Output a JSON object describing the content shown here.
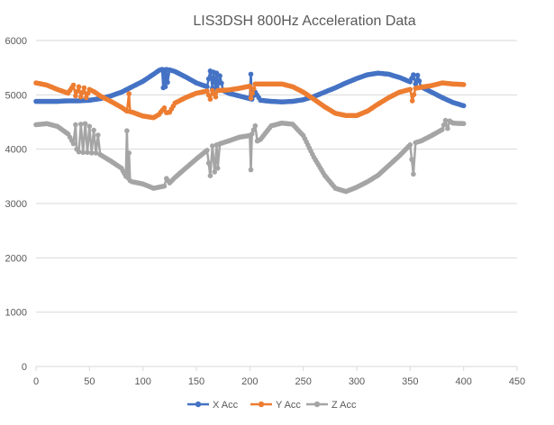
{
  "chart_data": {
    "type": "line",
    "title": "LIS3DSH 800Hz Acceleration Data",
    "xlabel": "",
    "ylabel": "",
    "xlim": [
      0,
      450
    ],
    "ylim": [
      0,
      6000
    ],
    "x_ticks": [
      0,
      50,
      100,
      150,
      200,
      250,
      300,
      350,
      400,
      450
    ],
    "y_ticks": [
      0,
      1000,
      2000,
      3000,
      4000,
      5000,
      6000
    ],
    "x_tick_labels": [
      "0",
      "50",
      "100",
      "150",
      "200",
      "250",
      "300",
      "350",
      "400",
      "450"
    ],
    "y_tick_labels": [
      "0",
      "1000",
      "2000",
      "3000",
      "4000",
      "5000",
      "6000"
    ],
    "grid": "horizontal",
    "legend_position": "bottom",
    "series": [
      {
        "name": "X Acc",
        "color": "#4472C4",
        "points": [
          [
            0,
            4880
          ],
          [
            10,
            4880
          ],
          [
            20,
            4880
          ],
          [
            30,
            4890
          ],
          [
            40,
            4890
          ],
          [
            50,
            4900
          ],
          [
            60,
            4930
          ],
          [
            70,
            4980
          ],
          [
            80,
            5050
          ],
          [
            90,
            5150
          ],
          [
            100,
            5250
          ],
          [
            110,
            5380
          ],
          [
            115,
            5450
          ],
          [
            118,
            5470
          ],
          [
            119,
            5130
          ],
          [
            120,
            5460
          ],
          [
            121,
            5150
          ],
          [
            122,
            5470
          ],
          [
            123,
            5230
          ],
          [
            125,
            5460
          ],
          [
            130,
            5430
          ],
          [
            140,
            5330
          ],
          [
            150,
            5220
          ],
          [
            160,
            5150
          ],
          [
            163,
            5440
          ],
          [
            165,
            5120
          ],
          [
            166,
            5420
          ],
          [
            168,
            5110
          ],
          [
            169,
            5400
          ],
          [
            170,
            5100
          ],
          [
            172,
            5350
          ],
          [
            175,
            5080
          ],
          [
            180,
            5030
          ],
          [
            190,
            4980
          ],
          [
            200,
            4930
          ],
          [
            201,
            5380
          ],
          [
            202,
            4920
          ],
          [
            205,
            5050
          ],
          [
            210,
            4900
          ],
          [
            220,
            4880
          ],
          [
            230,
            4870
          ],
          [
            240,
            4880
          ],
          [
            250,
            4910
          ],
          [
            260,
            4970
          ],
          [
            270,
            5050
          ],
          [
            280,
            5130
          ],
          [
            290,
            5220
          ],
          [
            300,
            5300
          ],
          [
            310,
            5370
          ],
          [
            320,
            5400
          ],
          [
            330,
            5380
          ],
          [
            340,
            5320
          ],
          [
            350,
            5240
          ],
          [
            353,
            5370
          ],
          [
            355,
            5200
          ],
          [
            357,
            5360
          ],
          [
            360,
            5150
          ],
          [
            370,
            5050
          ],
          [
            380,
            4950
          ],
          [
            390,
            4860
          ],
          [
            400,
            4800
          ]
        ]
      },
      {
        "name": "Y Acc",
        "color": "#ED7D31",
        "points": [
          [
            0,
            5220
          ],
          [
            10,
            5180
          ],
          [
            20,
            5100
          ],
          [
            30,
            5030
          ],
          [
            35,
            5180
          ],
          [
            37,
            4980
          ],
          [
            40,
            5150
          ],
          [
            42,
            4960
          ],
          [
            45,
            5130
          ],
          [
            47,
            4950
          ],
          [
            50,
            5100
          ],
          [
            55,
            5050
          ],
          [
            60,
            4980
          ],
          [
            70,
            4880
          ],
          [
            80,
            4770
          ],
          [
            85,
            4700
          ],
          [
            87,
            5020
          ],
          [
            88,
            4690
          ],
          [
            90,
            4680
          ],
          [
            100,
            4610
          ],
          [
            110,
            4580
          ],
          [
            115,
            4640
          ],
          [
            120,
            4760
          ],
          [
            122,
            4670
          ],
          [
            125,
            4680
          ],
          [
            130,
            4850
          ],
          [
            140,
            4950
          ],
          [
            150,
            5030
          ],
          [
            160,
            5070
          ],
          [
            163,
            4920
          ],
          [
            165,
            5080
          ],
          [
            168,
            4960
          ],
          [
            170,
            5080
          ],
          [
            180,
            5090
          ],
          [
            190,
            5120
          ],
          [
            200,
            5160
          ],
          [
            201,
            4940
          ],
          [
            205,
            5200
          ],
          [
            210,
            5200
          ],
          [
            220,
            5200
          ],
          [
            230,
            5200
          ],
          [
            240,
            5150
          ],
          [
            250,
            5050
          ],
          [
            260,
            4920
          ],
          [
            270,
            4780
          ],
          [
            280,
            4660
          ],
          [
            290,
            4620
          ],
          [
            300,
            4620
          ],
          [
            310,
            4700
          ],
          [
            320,
            4830
          ],
          [
            330,
            4950
          ],
          [
            340,
            5050
          ],
          [
            350,
            5100
          ],
          [
            352,
            4890
          ],
          [
            355,
            5120
          ],
          [
            360,
            5140
          ],
          [
            370,
            5170
          ],
          [
            380,
            5220
          ],
          [
            390,
            5200
          ],
          [
            400,
            5190
          ]
        ]
      },
      {
        "name": "Z Acc",
        "color": "#A5A5A5",
        "points": [
          [
            0,
            4450
          ],
          [
            10,
            4470
          ],
          [
            20,
            4420
          ],
          [
            30,
            4280
          ],
          [
            35,
            4100
          ],
          [
            37,
            4450
          ],
          [
            38,
            4000
          ],
          [
            40,
            3950
          ],
          [
            42,
            4460
          ],
          [
            44,
            3940
          ],
          [
            46,
            4470
          ],
          [
            48,
            3940
          ],
          [
            50,
            4420
          ],
          [
            52,
            3930
          ],
          [
            54,
            4350
          ],
          [
            56,
            3930
          ],
          [
            58,
            4260
          ],
          [
            60,
            3900
          ],
          [
            70,
            3780
          ],
          [
            80,
            3650
          ],
          [
            84,
            3500
          ],
          [
            85,
            4340
          ],
          [
            86,
            3470
          ],
          [
            87,
            3930
          ],
          [
            88,
            3420
          ],
          [
            90,
            3400
          ],
          [
            100,
            3360
          ],
          [
            110,
            3280
          ],
          [
            120,
            3320
          ],
          [
            122,
            3460
          ],
          [
            125,
            3380
          ],
          [
            130,
            3480
          ],
          [
            140,
            3650
          ],
          [
            150,
            3820
          ],
          [
            160,
            3980
          ],
          [
            163,
            3510
          ],
          [
            165,
            4060
          ],
          [
            167,
            3580
          ],
          [
            169,
            4080
          ],
          [
            170,
            3650
          ],
          [
            172,
            4100
          ],
          [
            180,
            4150
          ],
          [
            190,
            4220
          ],
          [
            200,
            4250
          ],
          [
            201,
            3620
          ],
          [
            202,
            4280
          ],
          [
            205,
            4430
          ],
          [
            207,
            4150
          ],
          [
            210,
            4180
          ],
          [
            220,
            4430
          ],
          [
            230,
            4480
          ],
          [
            240,
            4460
          ],
          [
            250,
            4250
          ],
          [
            260,
            3850
          ],
          [
            270,
            3520
          ],
          [
            280,
            3280
          ],
          [
            290,
            3220
          ],
          [
            300,
            3300
          ],
          [
            310,
            3400
          ],
          [
            320,
            3520
          ],
          [
            330,
            3700
          ],
          [
            340,
            3880
          ],
          [
            350,
            4080
          ],
          [
            353,
            3540
          ],
          [
            355,
            4120
          ],
          [
            360,
            4150
          ],
          [
            370,
            4250
          ],
          [
            380,
            4360
          ],
          [
            383,
            4530
          ],
          [
            385,
            4380
          ],
          [
            387,
            4520
          ],
          [
            390,
            4480
          ],
          [
            400,
            4470
          ]
        ]
      }
    ]
  }
}
